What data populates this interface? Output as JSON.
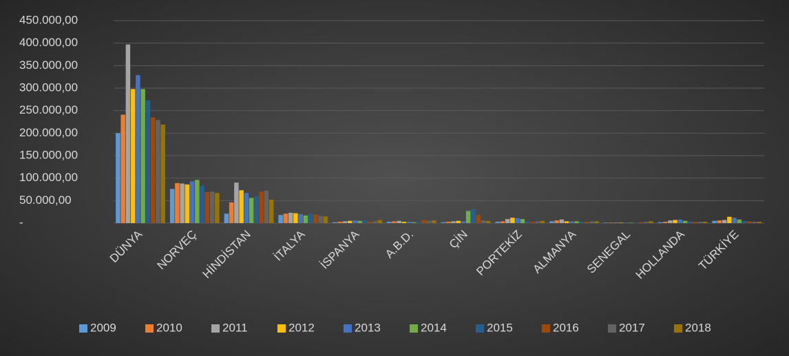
{
  "chart_data": {
    "type": "bar",
    "categories": [
      "DÜNYA",
      "NORVEÇ",
      "HİNDİSTAN",
      "İTALYA",
      "İSPANYA",
      "A.B.D.",
      "ÇİN",
      "PORTEKİZ",
      "ALMANYA",
      "SENEGAL",
      "HOLLANDA",
      "TÜRKİYE"
    ],
    "series": [
      {
        "name": "2009",
        "color": "#5b9bd5",
        "values": [
          200000,
          76000,
          21000,
          18000,
          2000,
          3000,
          2000,
          3000,
          4000,
          1000,
          2000,
          5000
        ]
      },
      {
        "name": "2010",
        "color": "#ed7d31",
        "values": [
          241000,
          89000,
          46000,
          21000,
          3000,
          4000,
          3000,
          4000,
          6000,
          1000,
          3000,
          6000
        ]
      },
      {
        "name": "2011",
        "color": "#a5a5a5",
        "values": [
          397000,
          88000,
          90000,
          23000,
          4000,
          5000,
          4000,
          9000,
          8000,
          1000,
          6000,
          7000
        ]
      },
      {
        "name": "2012",
        "color": "#ffc000",
        "values": [
          298000,
          86000,
          73000,
          22000,
          5000,
          3000,
          5000,
          12000,
          4000,
          1000,
          7000,
          14000
        ]
      },
      {
        "name": "2013",
        "color": "#4472c4",
        "values": [
          329000,
          93000,
          67000,
          20000,
          6000,
          3000,
          4000,
          11000,
          4000,
          1000,
          8000,
          12000
        ]
      },
      {
        "name": "2014",
        "color": "#70ad47",
        "values": [
          298000,
          96000,
          56000,
          17000,
          5000,
          2000,
          27000,
          9000,
          4000,
          1000,
          5000,
          8000
        ]
      },
      {
        "name": "2015",
        "color": "#255e91",
        "values": [
          273000,
          83000,
          60000,
          21000,
          6000,
          3000,
          31000,
          4000,
          3000,
          1000,
          4000,
          5000
        ]
      },
      {
        "name": "2016",
        "color": "#9e480e",
        "values": [
          235000,
          69000,
          70000,
          19000,
          3000,
          7000,
          18000,
          3000,
          3000,
          2000,
          3000,
          4000
        ]
      },
      {
        "name": "2017",
        "color": "#636363",
        "values": [
          229000,
          70000,
          72000,
          16000,
          4000,
          5000,
          6000,
          4000,
          4000,
          3000,
          3000,
          3000
        ]
      },
      {
        "name": "2018",
        "color": "#997300",
        "values": [
          219000,
          67000,
          52000,
          15000,
          7000,
          6000,
          5000,
          5000,
          4000,
          4000,
          3000,
          3000
        ]
      }
    ],
    "ylim": [
      0,
      450000
    ],
    "yticks": [
      {
        "value": 0,
        "label": "-"
      },
      {
        "value": 50000,
        "label": "50.000,00"
      },
      {
        "value": 100000,
        "label": "100.000,00"
      },
      {
        "value": 150000,
        "label": "150.000,00"
      },
      {
        "value": 200000,
        "label": "200.000,00"
      },
      {
        "value": 250000,
        "label": "250.000,00"
      },
      {
        "value": 300000,
        "label": "300.000,00"
      },
      {
        "value": 350000,
        "label": "350.000,00"
      },
      {
        "value": 400000,
        "label": "400.000,00"
      },
      {
        "value": 450000,
        "label": "450.000,00"
      }
    ],
    "grid": true,
    "legend": "bottom"
  }
}
